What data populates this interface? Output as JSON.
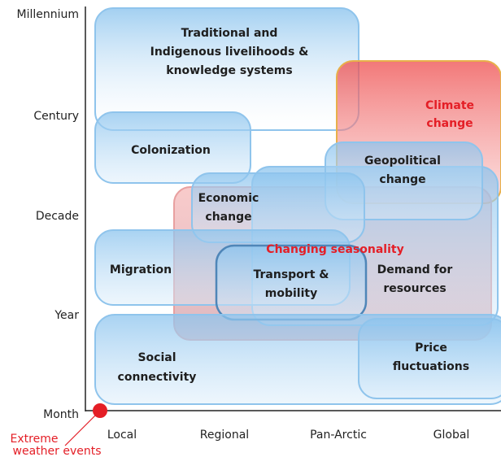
{
  "y_axis": [
    "Millennium",
    "Century",
    "Decade",
    "Year",
    "Month"
  ],
  "x_axis": [
    "Local",
    "Regional",
    "Pan-Arctic",
    "Global"
  ],
  "regions": [
    {
      "lines": [
        "Traditional and",
        "Indigenous livelihoods &",
        "knowledge systems"
      ]
    },
    {
      "lines": [
        "Climate",
        "change"
      ]
    },
    {
      "lines": [
        "Colonization"
      ]
    },
    {
      "lines": [
        "Geopolitical",
        "change"
      ]
    },
    {
      "lines": [
        "Economic",
        "change"
      ]
    },
    {
      "lines": [
        "Changing seasonality"
      ]
    },
    {
      "lines": [
        "Demand for",
        "resources"
      ]
    },
    {
      "lines": [
        "Migration"
      ]
    },
    {
      "lines": [
        "Transport &",
        "mobility"
      ]
    },
    {
      "lines": [
        "Social",
        "connectivity"
      ]
    },
    {
      "lines": [
        "Price",
        "fluctuations"
      ]
    }
  ],
  "point_label": [
    "Extreme",
    "weather events"
  ]
}
